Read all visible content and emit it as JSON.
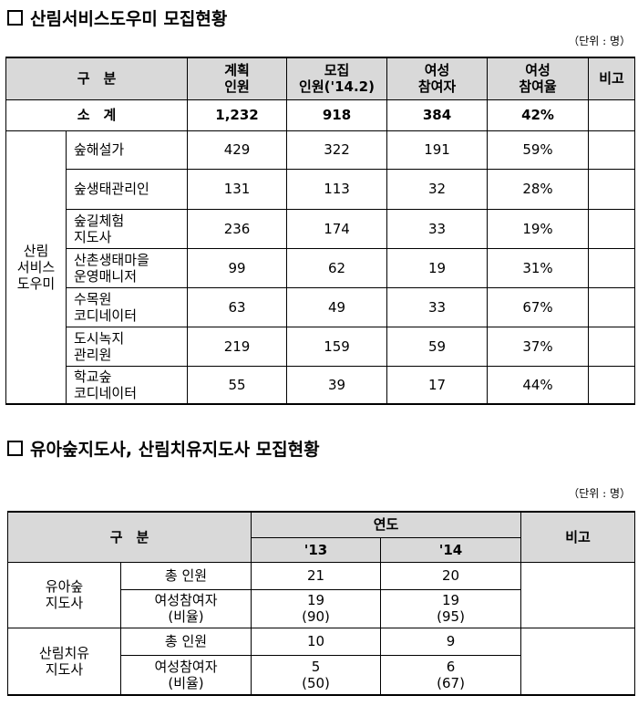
{
  "section1": {
    "title": "산림서비스도우미 모집현황",
    "unit": "（단위 : 명）",
    "headers": [
      "구　분",
      "계획\n인원",
      "모집\n인원('14.2)",
      "여성\n참여자",
      "여성\n참여율",
      "비고"
    ],
    "total": {
      "label": "소　계",
      "planned": "1,232",
      "recruited": "918",
      "female": "384",
      "rate": "42%",
      "note": ""
    },
    "group_label": "산림\n서비스\n도우미",
    "rows": [
      {
        "name": "숲해설가",
        "planned": "429",
        "recruited": "322",
        "female": "191",
        "rate": "59%",
        "note": ""
      },
      {
        "name": "숲생태관리인",
        "planned": "131",
        "recruited": "113",
        "female": "32",
        "rate": "28%",
        "note": ""
      },
      {
        "name": "숲길체험\n지도사",
        "planned": "236",
        "recruited": "174",
        "female": "33",
        "rate": "19%",
        "note": ""
      },
      {
        "name": "산촌생태마을\n운영매니저",
        "planned": "99",
        "recruited": "62",
        "female": "19",
        "rate": "31%",
        "note": ""
      },
      {
        "name": "수목원\n코디네이터",
        "planned": "63",
        "recruited": "49",
        "female": "33",
        "rate": "67%",
        "note": ""
      },
      {
        "name": "도시녹지\n관리원",
        "planned": "219",
        "recruited": "159",
        "female": "59",
        "rate": "37%",
        "note": ""
      },
      {
        "name": "학교숲\n코디네이터",
        "planned": "55",
        "recruited": "39",
        "female": "17",
        "rate": "44%",
        "note": ""
      }
    ]
  },
  "section2": {
    "title": "유아숲지도사, 산림치유지도사 모집현황",
    "unit": "（단위 : 명）",
    "header_gubun": "구　분",
    "header_year": "연도",
    "header_note": "비고",
    "years": [
      "'13",
      "'14"
    ],
    "groups": [
      {
        "name": "유아숲\n지도사",
        "total_label": "총 인원",
        "total": [
          "21",
          "20"
        ],
        "female_label": "여성참여자\n(비율)",
        "female": [
          "19\n(90)",
          "19\n(95)"
        ]
      },
      {
        "name": "산림치유\n지도사",
        "total_label": "총 인원",
        "total": [
          "10",
          "9"
        ],
        "female_label": "여성참여자\n(비율)",
        "female": [
          "5\n(50)",
          "6\n(67)"
        ]
      }
    ]
  }
}
